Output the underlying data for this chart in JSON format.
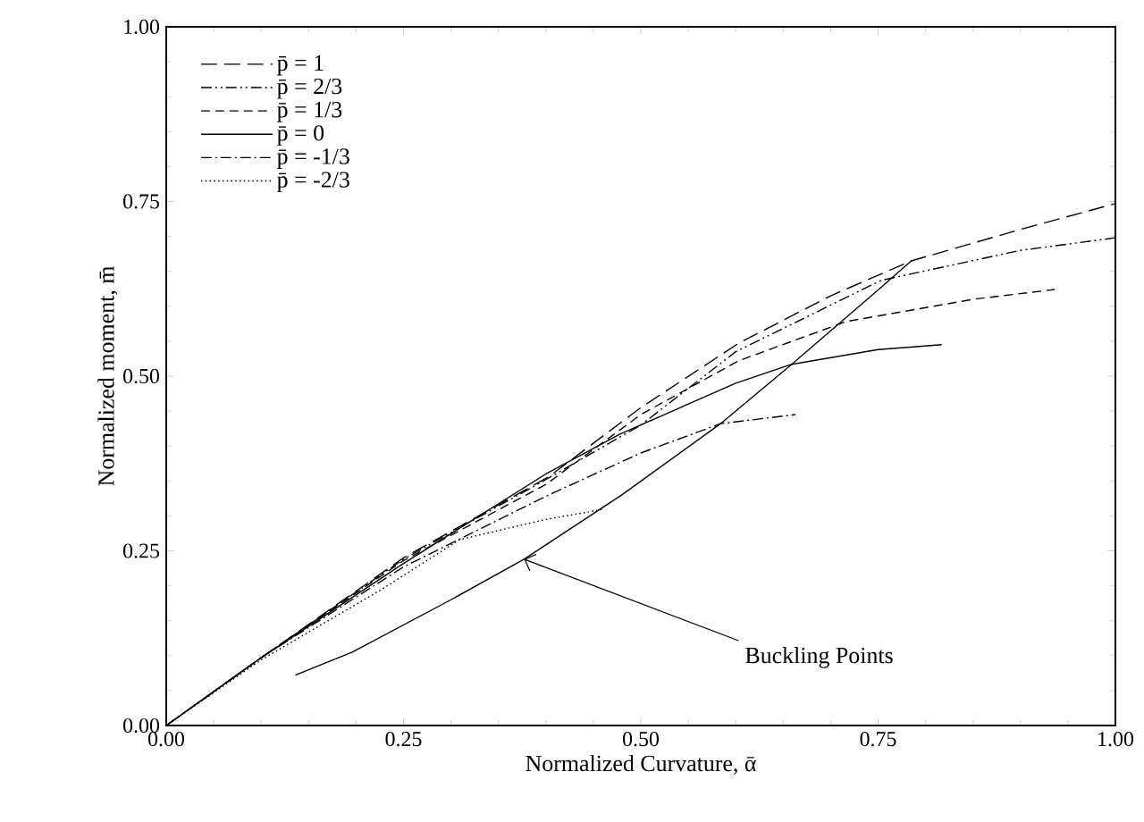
{
  "chart_data": {
    "type": "line",
    "xlabel": "Normalized Curvature,  ᾱ",
    "ylabel": "Normalized moment,  m̄",
    "xlim": [
      0,
      1
    ],
    "ylim": [
      0,
      1
    ],
    "xticks": [
      {
        "value": 0,
        "label": "0.00"
      },
      {
        "value": 0.25,
        "label": "0.25"
      },
      {
        "value": 0.5,
        "label": "0.50"
      },
      {
        "value": 0.75,
        "label": "0.75"
      },
      {
        "value": 1,
        "label": "1.00"
      }
    ],
    "yticks": [
      {
        "value": 0,
        "label": "0.00"
      },
      {
        "value": 0.25,
        "label": "0.25"
      },
      {
        "value": 0.5,
        "label": "0.50"
      },
      {
        "value": 0.75,
        "label": "0.75"
      },
      {
        "value": 1,
        "label": "1.00"
      }
    ],
    "legend": "top left",
    "grid": false,
    "series": [
      {
        "name": "p̄ = 1",
        "color": "#000000",
        "line_style": "long dashed",
        "x": [
          0,
          0.1,
          0.25,
          0.403,
          0.5,
          0.603,
          0.7,
          0.785,
          0.9,
          1.0
        ],
        "values": [
          0,
          0.097,
          0.24,
          0.356,
          0.455,
          0.547,
          0.615,
          0.665,
          0.71,
          0.747
        ]
      },
      {
        "name": "p̄ = 2/3",
        "color": "#000000",
        "line_style": "dashdotdot",
        "x": [
          0,
          0.1,
          0.25,
          0.4,
          0.5,
          0.6,
          0.753,
          0.9,
          1.0
        ],
        "values": [
          0,
          0.097,
          0.238,
          0.352,
          0.43,
          0.535,
          0.637,
          0.68,
          0.698
        ]
      },
      {
        "name": "p̄ = 1/3",
        "color": "#000000",
        "line_style": "dashed",
        "x": [
          0,
          0.1,
          0.25,
          0.4,
          0.5,
          0.603,
          0.716,
          0.85,
          0.936
        ],
        "values": [
          0,
          0.097,
          0.236,
          0.345,
          0.445,
          0.522,
          0.578,
          0.61,
          0.624
        ]
      },
      {
        "name": "p̄ = 0",
        "color": "#000000",
        "line_style": "solid",
        "x": [
          0,
          0.1,
          0.25,
          0.4,
          0.478,
          0.6,
          0.659,
          0.75,
          0.817
        ],
        "values": [
          0,
          0.097,
          0.232,
          0.36,
          0.417,
          0.49,
          0.517,
          0.538,
          0.545
        ]
      },
      {
        "name": "p̄ = -1/3",
        "color": "#000000",
        "line_style": "dashdot",
        "x": [
          0,
          0.1,
          0.25,
          0.403,
          0.5,
          0.584,
          0.663
        ],
        "values": [
          0,
          0.097,
          0.227,
          0.33,
          0.39,
          0.432,
          0.445
        ]
      },
      {
        "name": "p̄ = -2/3",
        "color": "#000000",
        "line_style": "dotted",
        "x": [
          0,
          0.1,
          0.226,
          0.309,
          0.4,
          0.459
        ],
        "values": [
          0,
          0.094,
          0.194,
          0.266,
          0.295,
          0.309
        ]
      },
      {
        "color": "#000000",
        "line_style": "solid",
        "x": [
          0.136,
          0.196,
          0.3,
          0.377,
          0.48,
          0.584,
          0.659,
          0.753,
          0.785
        ],
        "values": [
          0.072,
          0.105,
          0.18,
          0.238,
          0.33,
          0.432,
          0.517,
          0.627,
          0.665
        ]
      }
    ],
    "annotations": [
      {
        "text": "Buckling Points",
        "x": 0.377,
        "y": 0.238
      }
    ]
  }
}
